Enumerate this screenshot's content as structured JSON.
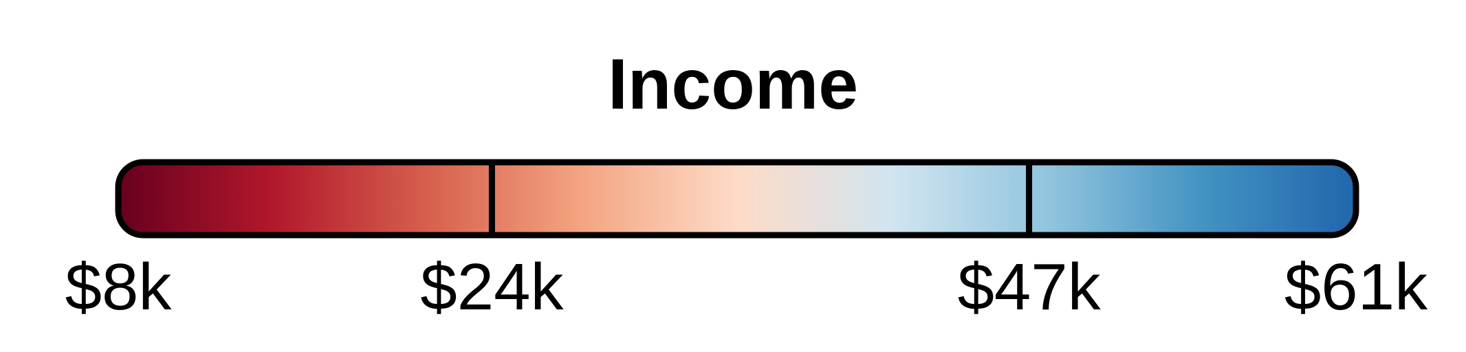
{
  "chart_data": {
    "type": "colorbar",
    "title": "Income",
    "colormap": "RdBu",
    "colors": [
      "#67001f",
      "#b2182b",
      "#d6604d",
      "#f4a582",
      "#fddbc7",
      "#d1e5f0",
      "#92c5de",
      "#4393c3",
      "#2166ac"
    ],
    "domain": [
      8,
      61
    ],
    "unit": "thousand USD",
    "ticks": [
      {
        "value": 8,
        "label": "$8k"
      },
      {
        "value": 24,
        "label": "$24k"
      },
      {
        "value": 47,
        "label": "$47k"
      },
      {
        "value": 61,
        "label": "$61k"
      }
    ],
    "dividers": [
      24,
      47
    ],
    "outline_color": "#000000"
  }
}
